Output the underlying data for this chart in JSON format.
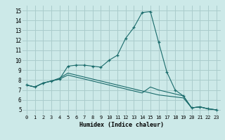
{
  "xlabel": "Humidex (Indice chaleur)",
  "background_color": "#cce9e8",
  "grid_color": "#aacccc",
  "line_color": "#1a6b6b",
  "xlim": [
    -0.5,
    23.5
  ],
  "ylim": [
    4.5,
    15.5
  ],
  "xticks": [
    0,
    1,
    2,
    3,
    4,
    5,
    6,
    7,
    8,
    9,
    10,
    11,
    12,
    13,
    14,
    15,
    16,
    17,
    18,
    19,
    20,
    21,
    22,
    23
  ],
  "yticks": [
    5,
    6,
    7,
    8,
    9,
    10,
    11,
    12,
    13,
    14,
    15
  ],
  "series": [
    {
      "x": [
        0,
        1,
        2,
        3,
        4,
        5,
        6,
        7,
        8,
        9,
        10,
        11,
        12,
        13,
        14,
        15,
        16,
        17,
        18,
        19,
        20,
        21,
        22,
        23
      ],
      "y": [
        7.5,
        7.3,
        7.7,
        7.9,
        8.1,
        9.4,
        9.5,
        9.5,
        9.4,
        9.3,
        10.0,
        10.5,
        12.2,
        13.3,
        14.8,
        14.9,
        11.8,
        8.8,
        7.0,
        6.4,
        5.2,
        5.3,
        5.1,
        5.0
      ],
      "marker": "+"
    },
    {
      "x": [
        0,
        1,
        2,
        3,
        4,
        5,
        6,
        7,
        8,
        9,
        10,
        11,
        12,
        13,
        14,
        15,
        16,
        17,
        18,
        19,
        20,
        21,
        22,
        23
      ],
      "y": [
        7.5,
        7.3,
        7.7,
        7.9,
        8.2,
        8.7,
        8.5,
        8.3,
        8.1,
        7.9,
        7.7,
        7.5,
        7.3,
        7.1,
        6.9,
        6.7,
        6.5,
        6.4,
        6.3,
        6.2,
        5.2,
        5.3,
        5.1,
        5.0
      ],
      "marker": null
    },
    {
      "x": [
        0,
        1,
        2,
        3,
        4,
        5,
        6,
        7,
        8,
        9,
        10,
        11,
        12,
        13,
        14,
        15,
        16,
        17,
        18,
        19,
        20,
        21,
        22,
        23
      ],
      "y": [
        7.5,
        7.3,
        7.7,
        7.9,
        8.1,
        8.5,
        8.3,
        8.1,
        7.9,
        7.7,
        7.5,
        7.3,
        7.1,
        6.9,
        6.7,
        7.3,
        7.0,
        6.8,
        6.6,
        6.4,
        5.2,
        5.3,
        5.1,
        5.0
      ],
      "marker": null
    }
  ]
}
